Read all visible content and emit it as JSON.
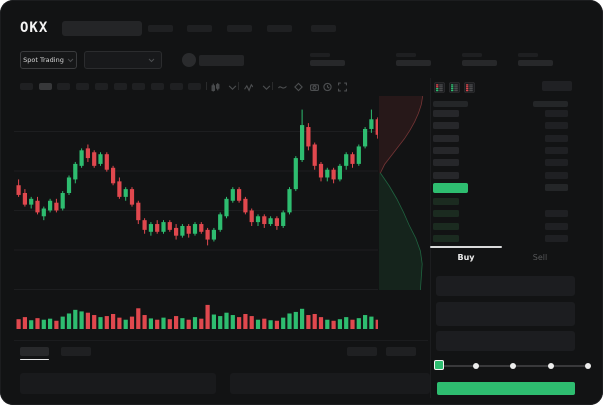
{
  "window_title": "OKX spot trading terminal",
  "colors": {
    "up": "#2ebd70",
    "down": "#e0484e",
    "bg": "#121314",
    "panel": "#191a1c",
    "skeleton": "#242527",
    "accent_text": "#ececec",
    "dim_text": "#565759"
  },
  "header": {
    "logo": "OKX",
    "search_placeholder": "",
    "nav_skeleton_count": 5
  },
  "subheader": {
    "market_selector_label": "Spot Trading",
    "pair_dropdown_value": "",
    "stats_skeleton_count": 4
  },
  "chart_toolbar": {
    "timeframe_pill_count": 10,
    "active_timeframe_index": 1,
    "icons": [
      "chart-type-icon",
      "chevron-down-icon",
      "indicators-icon",
      "chevron-down-icon",
      "line-tool-icon",
      "tag-icon",
      "camera-icon",
      "history-icon",
      "fullscreen-icon"
    ]
  },
  "chart_data": {
    "type": "candlestick",
    "title": "",
    "xlabel": "",
    "ylabel": "",
    "note": "no axis tick labels visible; values normalized 0-100",
    "candles": [
      [
        54,
        57,
        48,
        49
      ],
      [
        50,
        52,
        43,
        44
      ],
      [
        44,
        48,
        42,
        47
      ],
      [
        46,
        48,
        39,
        40
      ],
      [
        38,
        43,
        36,
        42
      ],
      [
        41,
        47,
        40,
        46
      ],
      [
        45,
        47,
        40,
        41
      ],
      [
        42,
        51,
        41,
        50
      ],
      [
        50,
        59,
        49,
        58
      ],
      [
        57,
        66,
        55,
        65
      ],
      [
        64,
        73,
        63,
        72
      ],
      [
        73,
        75,
        66,
        68
      ],
      [
        71,
        72,
        63,
        64
      ],
      [
        65,
        71,
        64,
        70
      ],
      [
        70,
        71,
        61,
        62
      ],
      [
        63,
        64,
        54,
        55
      ],
      [
        56,
        58,
        47,
        48
      ],
      [
        48,
        53,
        46,
        52
      ],
      [
        52,
        53,
        43,
        44
      ],
      [
        45,
        46,
        34,
        36
      ],
      [
        36,
        37,
        29,
        31
      ],
      [
        30,
        35,
        28,
        34
      ],
      [
        34,
        36,
        29,
        30
      ],
      [
        30,
        36,
        29,
        35
      ],
      [
        35,
        36,
        30,
        31
      ],
      [
        32,
        34,
        26,
        28
      ],
      [
        28,
        34,
        27,
        33
      ],
      [
        33,
        34,
        27,
        29
      ],
      [
        29,
        35,
        28,
        34
      ],
      [
        34,
        35,
        29,
        30
      ],
      [
        31,
        32,
        23,
        26
      ],
      [
        26,
        32,
        25,
        31
      ],
      [
        31,
        40,
        30,
        39
      ],
      [
        38,
        48,
        37,
        47
      ],
      [
        46,
        53,
        45,
        52
      ],
      [
        52,
        53,
        45,
        46
      ],
      [
        47,
        48,
        39,
        40
      ],
      [
        41,
        42,
        33,
        35
      ],
      [
        35,
        39,
        33,
        38
      ],
      [
        38,
        39,
        32,
        34
      ],
      [
        34,
        38,
        33,
        37
      ],
      [
        37,
        38,
        31,
        33
      ],
      [
        33,
        41,
        32,
        40
      ],
      [
        40,
        53,
        39,
        52
      ],
      [
        52,
        69,
        51,
        68
      ],
      [
        67,
        93,
        66,
        85
      ],
      [
        84,
        86,
        72,
        74
      ],
      [
        75,
        76,
        62,
        64
      ],
      [
        65,
        66,
        56,
        58
      ],
      [
        58,
        63,
        56,
        62
      ],
      [
        62,
        63,
        55,
        57
      ],
      [
        57,
        65,
        56,
        64
      ],
      [
        64,
        71,
        62,
        70
      ],
      [
        70,
        71,
        63,
        65
      ],
      [
        65,
        75,
        64,
        74
      ],
      [
        74,
        84,
        73,
        83
      ],
      [
        83,
        93,
        81,
        88
      ],
      [
        88,
        89,
        78,
        80
      ]
    ],
    "volumes": [
      30,
      38,
      26,
      34,
      28,
      32,
      24,
      40,
      52,
      66,
      60,
      55,
      46,
      38,
      42,
      50,
      36,
      28,
      40,
      72,
      46,
      33,
      28,
      36,
      30,
      42,
      34,
      28,
      38,
      32,
      85,
      48,
      42,
      55,
      46,
      38,
      50,
      42,
      28,
      32,
      26,
      24,
      36,
      52,
      58,
      70,
      46,
      50,
      38,
      28,
      24,
      30,
      38,
      28,
      34,
      46,
      40,
      28
    ],
    "depth": {
      "asks_xfrac": [
        0.93,
        0.9,
        0.84,
        0.76,
        0.66,
        0.54,
        0.4,
        0.26,
        0.12,
        0.03
      ],
      "bids_xfrac": [
        0.03,
        0.22,
        0.38,
        0.52,
        0.64,
        0.78,
        0.88,
        0.92,
        0.9,
        0.88
      ]
    },
    "grid": "faint horizontal lines",
    "legend": "none"
  },
  "order_book": {
    "toggle_icons": [
      "book-split-icon",
      "book-bids-icon",
      "book-asks-icon"
    ],
    "asks_count": 6,
    "bids_count": 4,
    "bids_without_amount": [
      0
    ],
    "last_price_highlighted": true
  },
  "trade_panel": {
    "tabs": {
      "buy": "Buy",
      "sell": "Sell"
    },
    "active_tab": "Buy",
    "field_count": 3,
    "slider_stop_count": 5,
    "slider_position_index": 0,
    "submit_label": ""
  },
  "bottom_bar": {
    "left_tab_count": 2,
    "active_left_tab_index": 0,
    "right_tab_count": 2,
    "panel_count": 2
  }
}
